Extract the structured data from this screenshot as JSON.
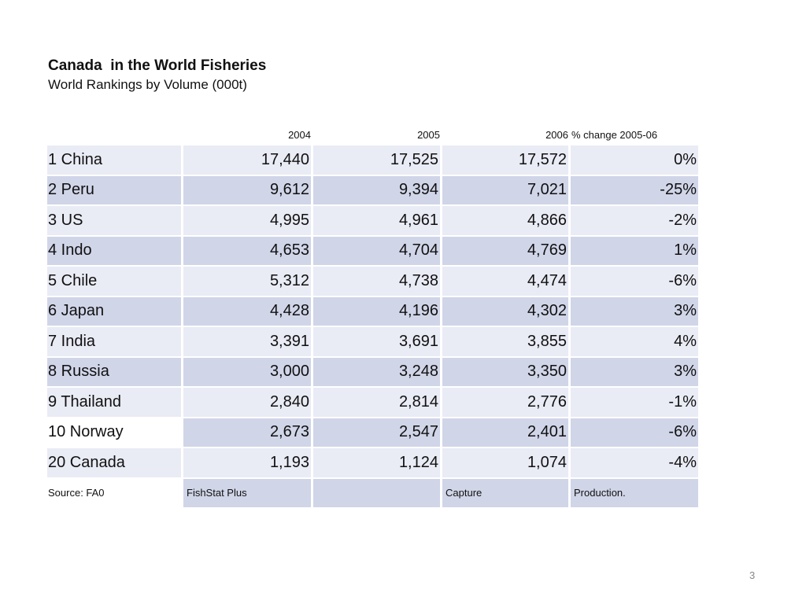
{
  "title": "Canada  in the World Fisheries",
  "subtitle": "World Rankings by Volume (000t)",
  "columns": [
    "2004",
    "2005",
    "2006",
    "% change 2005-06"
  ],
  "rows": [
    {
      "country": "1 China",
      "v2004": "17,440",
      "v2005": "17,525",
      "v2006": "17,572",
      "change": "0%"
    },
    {
      "country": "2 Peru",
      "v2004": "9,612",
      "v2005": "9,394",
      "v2006": "7,021",
      "change": "-25%"
    },
    {
      "country": "3 US",
      "v2004": "4,995",
      "v2005": "4,961",
      "v2006": "4,866",
      "change": "-2%"
    },
    {
      "country": "4 Indo",
      "v2004": "4,653",
      "v2005": "4,704",
      "v2006": "4,769",
      "change": "1%"
    },
    {
      "country": "5 Chile",
      "v2004": "5,312",
      "v2005": "4,738",
      "v2006": "4,474",
      "change": "-6%"
    },
    {
      "country": "6 Japan",
      "v2004": "4,428",
      "v2005": "4,196",
      "v2006": "4,302",
      "change": "3%"
    },
    {
      "country": "7 India",
      "v2004": "3,391",
      "v2005": "3,691",
      "v2006": "3,855",
      "change": "4%"
    },
    {
      "country": "8 Russia",
      "v2004": "3,000",
      "v2005": "3,248",
      "v2006": "3,350",
      "change": "3%"
    },
    {
      "country": "9 Thailand",
      "v2004": "2,840",
      "v2005": "2,814",
      "v2006": "2,776",
      "change": "-1%"
    },
    {
      "country": "10 Norway",
      "v2004": "2,673",
      "v2005": "2,547",
      "v2006": "2,401",
      "change": "-6%"
    },
    {
      "country": "20 Canada",
      "v2004": "1,193",
      "v2005": "1,124",
      "v2006": "1,074",
      "change": "-4%"
    }
  ],
  "source": [
    "Source: FA0",
    "FishStat Plus",
    "",
    "Capture",
    "Production."
  ],
  "page_number": "3"
}
